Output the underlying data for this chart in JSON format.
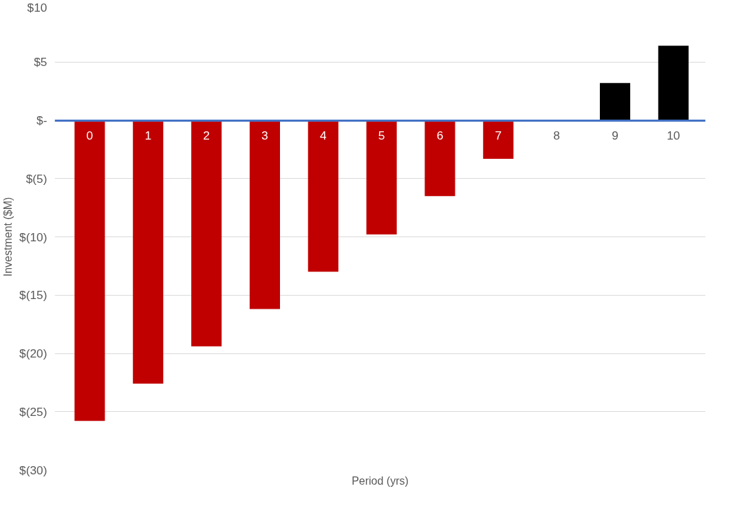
{
  "chart_data": {
    "type": "bar",
    "xlabel": "Period (yrs)",
    "ylabel": "Investment ($M)",
    "categories": [
      "0",
      "1",
      "2",
      "3",
      "4",
      "5",
      "6",
      "7",
      "8",
      "9",
      "10"
    ],
    "values": [
      -25.8,
      -22.6,
      -19.4,
      -16.2,
      -13.0,
      -9.8,
      -6.5,
      -3.3,
      0,
      3.2,
      6.4
    ],
    "colors": [
      "#c00000",
      "#c00000",
      "#c00000",
      "#c00000",
      "#c00000",
      "#c00000",
      "#c00000",
      "#c00000",
      "#c00000",
      "#000000",
      "#000000"
    ],
    "ylim": [
      -30,
      10
    ],
    "yticks": [
      {
        "value": 10,
        "label": "$10"
      },
      {
        "value": 5,
        "label": "$5"
      },
      {
        "value": 0,
        "label": "$-"
      },
      {
        "value": -5,
        "label": "$(5)"
      },
      {
        "value": -10,
        "label": "$(10)"
      },
      {
        "value": -15,
        "label": "$(15)"
      },
      {
        "value": -20,
        "label": "$(20)"
      },
      {
        "value": -25,
        "label": "$(25)"
      },
      {
        "value": -30,
        "label": "$(30)"
      }
    ],
    "grid": "y"
  }
}
